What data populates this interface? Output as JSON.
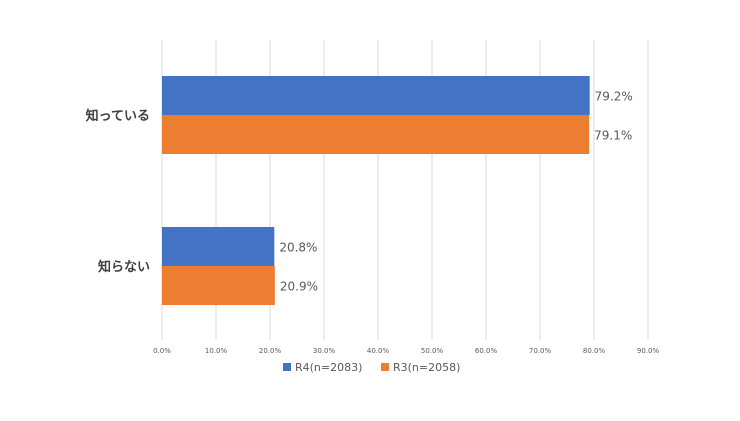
{
  "chart_data": {
    "type": "bar",
    "orientation": "horizontal",
    "categories": [
      "知っている",
      "知らない"
    ],
    "series": [
      {
        "name": "R4(n=2083)",
        "color": "#4472C4",
        "values": [
          79.2,
          20.8
        ],
        "labels": [
          "79.2%",
          "20.8%"
        ]
      },
      {
        "name": "R3(n=2058)",
        "color": "#ED7D31",
        "values": [
          79.1,
          20.9
        ],
        "labels": [
          "79.1%",
          "20.9%"
        ]
      }
    ],
    "xlim": [
      0,
      90
    ],
    "xticks": [
      0,
      10,
      20,
      30,
      40,
      50,
      60,
      70,
      80,
      90
    ],
    "xtick_labels": [
      "0.0%",
      "10.0%",
      "20.0%",
      "30.0%",
      "40.0%",
      "50.0%",
      "60.0%",
      "70.0%",
      "80.0%",
      "90.0%"
    ],
    "grid": true,
    "legend_position": "bottom"
  }
}
